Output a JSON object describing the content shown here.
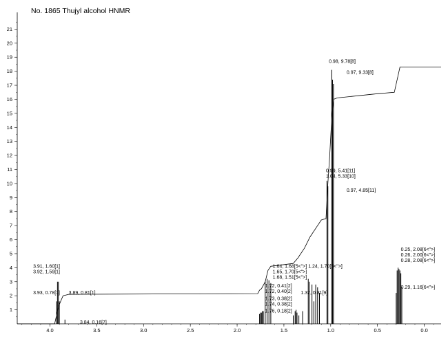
{
  "chart_data": {
    "type": "line",
    "title": "No. 1865 Thujyl alcohol HNMR",
    "xlabel": "",
    "ylabel": "",
    "x_reversed": true,
    "xlim": [
      4.35,
      -0.18
    ],
    "ylim": [
      0,
      22
    ],
    "x_ticks": [
      "4.0",
      "3.5",
      "3.0",
      "2.5",
      "2.0",
      "1.5",
      "1.0",
      "0.5",
      "0.0"
    ],
    "y_ticks": [
      "1",
      "2",
      "3",
      "4",
      "5",
      "6",
      "7",
      "8",
      "9",
      "10",
      "11",
      "12",
      "13",
      "14",
      "15",
      "16",
      "17",
      "18",
      "19",
      "20",
      "21"
    ],
    "grid": false,
    "peaks": [
      {
        "ppm": 3.93,
        "height": 1.6
      },
      {
        "ppm": 3.92,
        "height": 3.0
      },
      {
        "ppm": 3.91,
        "height": 3.0
      },
      {
        "ppm": 3.9,
        "height": 1.6
      },
      {
        "ppm": 3.84,
        "height": 0.3
      },
      {
        "ppm": 1.76,
        "height": 0.7
      },
      {
        "ppm": 1.75,
        "height": 0.8
      },
      {
        "ppm": 1.74,
        "height": 0.8
      },
      {
        "ppm": 1.73,
        "height": 0.9
      },
      {
        "ppm": 1.72,
        "height": 0.9
      },
      {
        "ppm": 1.7,
        "height": 3.0
      },
      {
        "ppm": 1.68,
        "height": 3.2
      },
      {
        "ppm": 1.66,
        "height": 3.1
      },
      {
        "ppm": 1.64,
        "height": 2.9
      },
      {
        "ppm": 1.4,
        "height": 0.6
      },
      {
        "ppm": 1.38,
        "height": 0.9
      },
      {
        "ppm": 1.37,
        "height": 1.0
      },
      {
        "ppm": 1.36,
        "height": 0.8
      },
      {
        "ppm": 1.34,
        "height": 0.6
      },
      {
        "ppm": 1.3,
        "height": 0.9
      },
      {
        "ppm": 1.24,
        "height": 3.2
      },
      {
        "ppm": 1.23,
        "height": 3.0
      },
      {
        "ppm": 1.2,
        "height": 2.8
      },
      {
        "ppm": 1.18,
        "height": 1.6
      },
      {
        "ppm": 1.16,
        "height": 2.8
      },
      {
        "ppm": 1.14,
        "height": 2.6
      },
      {
        "ppm": 1.12,
        "height": 2.2
      },
      {
        "ppm": 1.04,
        "height": 10.2
      },
      {
        "ppm": 1.03,
        "height": 9.8
      },
      {
        "ppm": 0.99,
        "height": 18.1
      },
      {
        "ppm": 0.98,
        "height": 17.4
      },
      {
        "ppm": 0.97,
        "height": 17.1
      },
      {
        "ppm": 0.3,
        "height": 2.2
      },
      {
        "ppm": 0.29,
        "height": 3.8
      },
      {
        "ppm": 0.28,
        "height": 4.0
      },
      {
        "ppm": 0.27,
        "height": 3.9
      },
      {
        "ppm": 0.26,
        "height": 3.8
      },
      {
        "ppm": 0.25,
        "height": 3.6
      },
      {
        "ppm": 0.24,
        "height": 2.6
      }
    ],
    "integral": [
      {
        "ppm": 4.35,
        "y": 0.0
      },
      {
        "ppm": 3.95,
        "y": 0.0
      },
      {
        "ppm": 3.91,
        "y": 1.2
      },
      {
        "ppm": 3.88,
        "y": 1.7
      },
      {
        "ppm": 3.86,
        "y": 2.0
      },
      {
        "ppm": 3.8,
        "y": 2.1
      },
      {
        "ppm": 1.78,
        "y": 2.15
      },
      {
        "ppm": 1.76,
        "y": 2.4
      },
      {
        "ppm": 1.74,
        "y": 2.5
      },
      {
        "ppm": 1.7,
        "y": 3.0
      },
      {
        "ppm": 1.67,
        "y": 3.8
      },
      {
        "ppm": 1.64,
        "y": 4.1
      },
      {
        "ppm": 1.4,
        "y": 4.3
      },
      {
        "ppm": 1.35,
        "y": 4.7
      },
      {
        "ppm": 1.28,
        "y": 5.4
      },
      {
        "ppm": 1.22,
        "y": 6.2
      },
      {
        "ppm": 1.15,
        "y": 6.9
      },
      {
        "ppm": 1.1,
        "y": 7.4
      },
      {
        "ppm": 1.05,
        "y": 7.5
      },
      {
        "ppm": 1.03,
        "y": 10.0
      },
      {
        "ppm": 1.01,
        "y": 12.0
      },
      {
        "ppm": 0.99,
        "y": 14.6
      },
      {
        "ppm": 0.97,
        "y": 16.0
      },
      {
        "ppm": 0.93,
        "y": 16.1
      },
      {
        "ppm": 0.5,
        "y": 16.4
      },
      {
        "ppm": 0.32,
        "y": 16.5
      },
      {
        "ppm": 0.29,
        "y": 17.4
      },
      {
        "ppm": 0.26,
        "y": 18.3
      },
      {
        "ppm": -0.18,
        "y": 18.3
      }
    ],
    "annotations": [
      {
        "text": "3.91, 1.60[1]",
        "anchor_ppm": 4.18,
        "anchor_y": 4.0
      },
      {
        "text": "3.92, 1.59[1]",
        "anchor_ppm": 4.18,
        "anchor_y": 3.6
      },
      {
        "text": "3.93, 0.78[1]",
        "anchor_ppm": 4.18,
        "anchor_y": 2.1
      },
      {
        "text": "3.89, 0.81[1]",
        "anchor_ppm": 3.8,
        "anchor_y": 2.1
      },
      {
        "text": "3.84, 0.16[7]",
        "anchor_ppm": 3.68,
        "anchor_y": 0.0
      },
      {
        "text": "1.64, 1.68[5<\">]",
        "anchor_ppm": 1.62,
        "anchor_y": 4.0
      },
      {
        "text": "1.65, 1.70[5<\">]",
        "anchor_ppm": 1.62,
        "anchor_y": 3.6
      },
      {
        "text": "1.68, 1.51[5<\">]",
        "anchor_ppm": 1.62,
        "anchor_y": 3.2
      },
      {
        "text": "1.24, 1.70[5<\">]",
        "anchor_ppm": 1.24,
        "anchor_y": 4.0
      },
      {
        "text": "1.72, 0.41[2]",
        "anchor_ppm": 1.7,
        "anchor_y": 2.6
      },
      {
        "text": "1.72, 0.40[2]",
        "anchor_ppm": 1.7,
        "anchor_y": 2.2
      },
      {
        "text": "1.73, 0.38[2]",
        "anchor_ppm": 1.7,
        "anchor_y": 1.7
      },
      {
        "text": "1.74, 0.38[2]",
        "anchor_ppm": 1.7,
        "anchor_y": 1.3
      },
      {
        "text": "1.76, 0.18[2]",
        "anchor_ppm": 1.7,
        "anchor_y": 0.8
      },
      {
        "text": "1.37, 0.81[9]",
        "anchor_ppm": 1.32,
        "anchor_y": 2.1
      },
      {
        "text": "0.99, 5.41[11]",
        "anchor_ppm": 1.05,
        "anchor_y": 10.8
      },
      {
        "text": "1.04, 5.33[10]",
        "anchor_ppm": 1.05,
        "anchor_y": 10.4
      },
      {
        "text": "0.97, 4.85[11]",
        "anchor_ppm": 0.83,
        "anchor_y": 9.4
      },
      {
        "text": "0.98, 9.78[8]",
        "anchor_ppm": 1.02,
        "anchor_y": 18.6
      },
      {
        "text": "0.97, 9.33[8]",
        "anchor_ppm": 0.83,
        "anchor_y": 17.8
      },
      {
        "text": "0.25, 2.08[6<\">]",
        "anchor_ppm": 0.25,
        "anchor_y": 5.2
      },
      {
        "text": "0.26, 2.00[6<\">]",
        "anchor_ppm": 0.25,
        "anchor_y": 4.8
      },
      {
        "text": "0.28, 2.08[6<\">]",
        "anchor_ppm": 0.25,
        "anchor_y": 4.4
      },
      {
        "text": "0.29, 1.16[6<\">]",
        "anchor_ppm": 0.25,
        "anchor_y": 2.5
      }
    ]
  }
}
